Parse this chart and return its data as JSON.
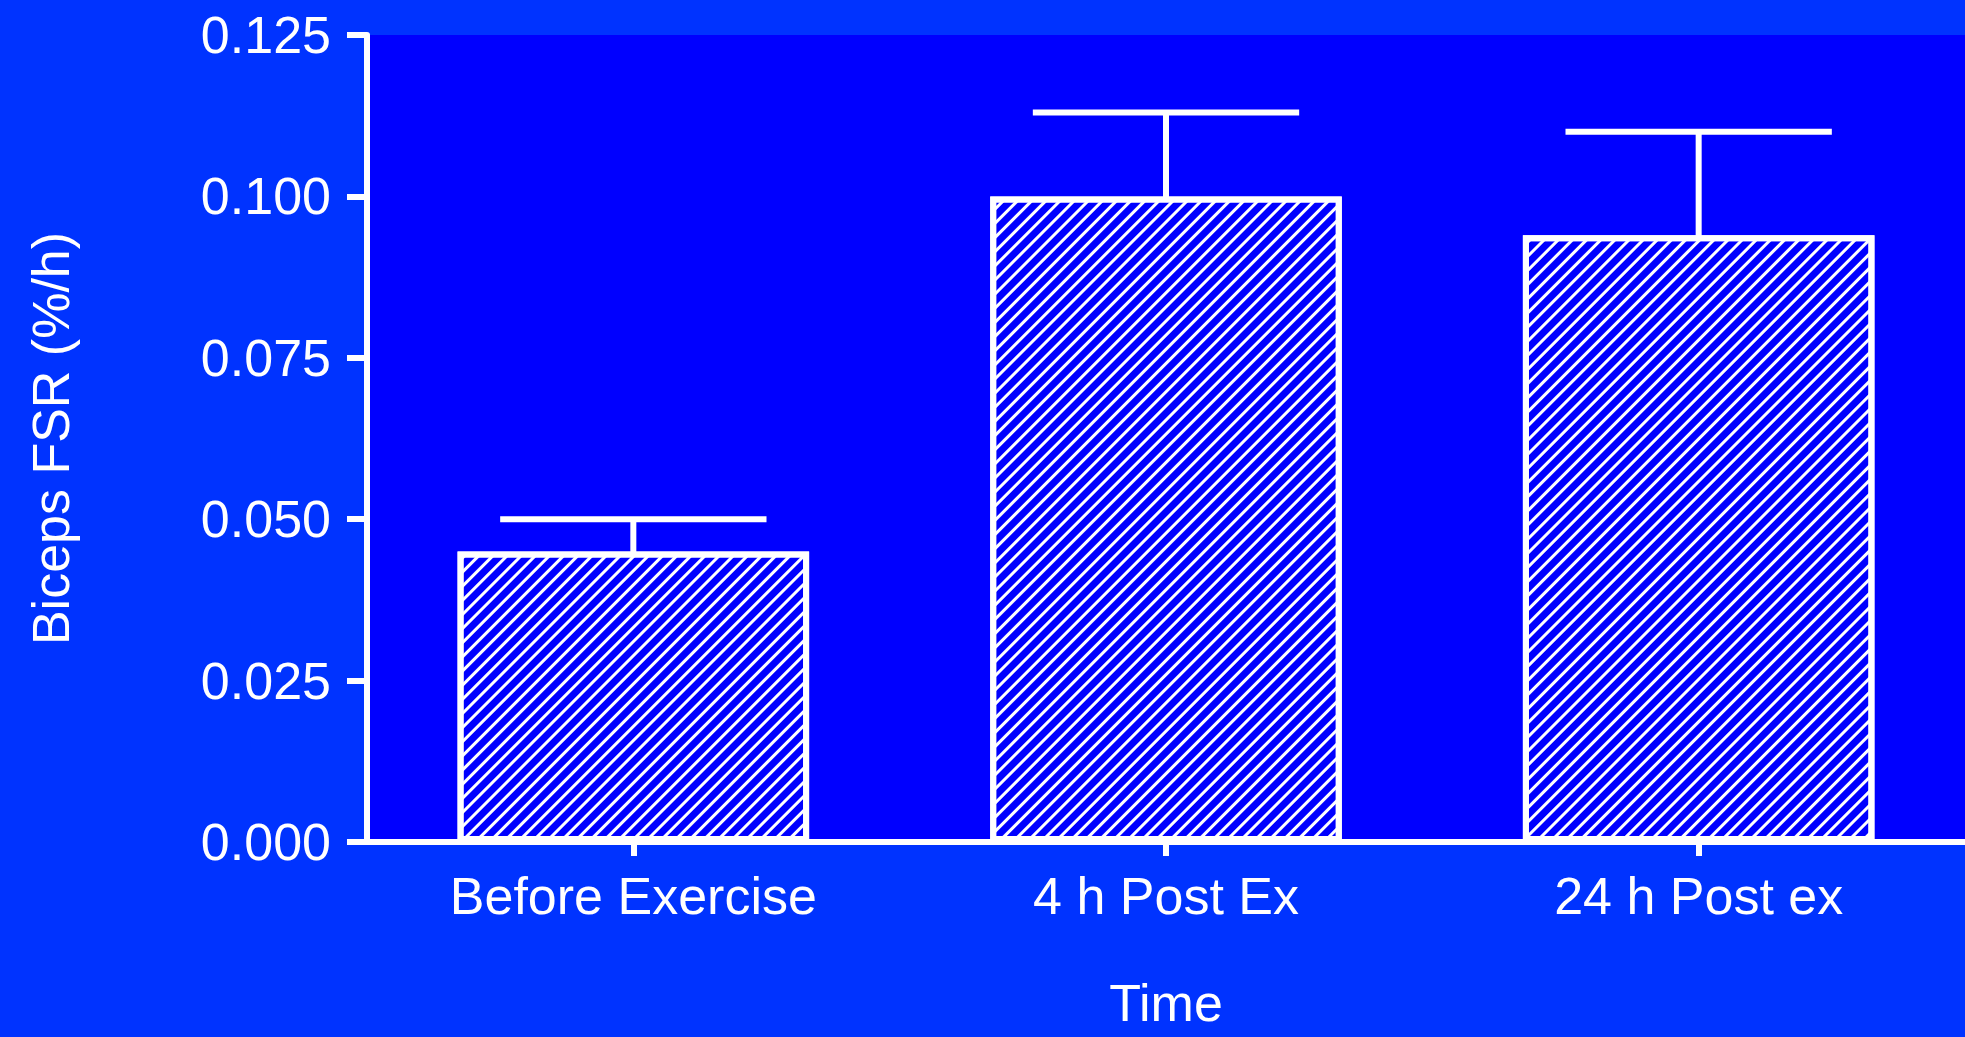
{
  "chart_data": {
    "type": "bar",
    "xlabel": "Time",
    "ylabel": "Biceps FSR (%/h)",
    "categories": [
      "Before Exercise",
      "4 h Post Ex",
      "24 h Post ex"
    ],
    "values": [
      0.045,
      0.1,
      0.094
    ],
    "errors": [
      0.005,
      0.013,
      0.016
    ],
    "color": "#0000ff",
    "ylim": [
      0,
      0.125
    ],
    "yticks": [
      {
        "value": 0,
        "label": "0.000"
      },
      {
        "value": 0.025,
        "label": "0.025"
      },
      {
        "value": 0.05,
        "label": "0.050"
      },
      {
        "value": 0.075,
        "label": "0.075"
      },
      {
        "value": 0.1,
        "label": "0.100"
      },
      {
        "value": 0.125,
        "label": "0.125"
      }
    ],
    "grid": false
  }
}
